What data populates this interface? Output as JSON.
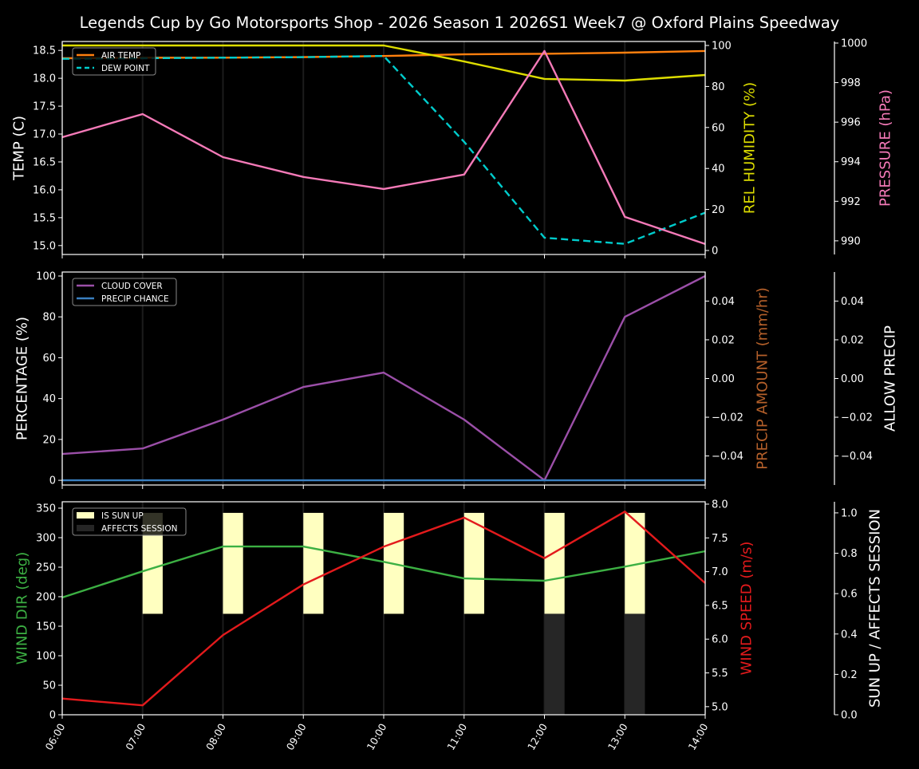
{
  "title": "Legends Cup by Go Motorsports Shop - 2026 Season 1 2026S1 Week7 @ Oxford Plains Speedway",
  "chart_data": [
    {
      "type": "line",
      "x": [
        "06:00",
        "07:00",
        "08:00",
        "09:00",
        "10:00",
        "11:00",
        "12:00",
        "13:00",
        "14:00"
      ],
      "left_axis": {
        "label": "TEMP (C)",
        "ylim": [
          14.84,
          18.66
        ],
        "ticks": [
          15.0,
          15.5,
          16.0,
          16.5,
          17.0,
          17.5,
          18.0,
          18.5
        ],
        "tick_labels": [
          "15.0",
          "15.5",
          "16.0",
          "16.5",
          "17.0",
          "17.5",
          "18.0",
          "18.5"
        ],
        "color": "#ffffff"
      },
      "right_axis": {
        "label": "REL HUMIDITY (%)",
        "ylim": [
          -1.95,
          101.95
        ],
        "ticks": [
          0,
          20,
          40,
          60,
          80,
          100
        ],
        "tick_labels": [
          "0",
          "20",
          "40",
          "60",
          "80",
          "100"
        ],
        "color": "#dddd00"
      },
      "far_right_axis": {
        "label": "PRESSURE (hPa)",
        "ylim": [
          989.31,
          1000.08
        ],
        "ticks": [
          990,
          992,
          994,
          996,
          998,
          1000
        ],
        "tick_labels": [
          "990",
          "992",
          "994",
          "996",
          "998",
          "1000"
        ],
        "color": "#f57ab8"
      },
      "series": [
        {
          "name": "AIR TEMP",
          "axis": "left",
          "color": "#ff7f0e",
          "dash": false,
          "legend": true,
          "values": [
            18.36,
            18.37,
            18.37,
            18.38,
            18.4,
            18.43,
            18.44,
            18.46,
            18.49
          ]
        },
        {
          "name": "DEW POINT",
          "axis": "left",
          "color": "#00cccc",
          "dash": true,
          "legend": true,
          "values": [
            18.35,
            18.36,
            18.37,
            18.38,
            18.4,
            16.86,
            15.14,
            15.03,
            15.59
          ]
        },
        {
          "axis": "right",
          "color": "#dddd00",
          "dash": false,
          "legend": false,
          "values": [
            100,
            100,
            100,
            100,
            100,
            92.2,
            83.7,
            82.9,
            85.6
          ]
        },
        {
          "axis": "far_right",
          "color": "#f57ab8",
          "dash": false,
          "legend": false,
          "values": [
            995.24,
            996.41,
            994.23,
            993.23,
            992.62,
            993.35,
            999.6,
            991.21,
            989.84
          ]
        }
      ],
      "legend": "top-left",
      "grid": "vertical"
    },
    {
      "type": "line",
      "x": [
        "06:00",
        "07:00",
        "08:00",
        "09:00",
        "10:00",
        "11:00",
        "12:00",
        "13:00",
        "14:00"
      ],
      "left_axis": {
        "label": "PERCENTAGE (%)",
        "ylim": [
          -2.3,
          101.95
        ],
        "ticks": [
          0,
          20,
          40,
          60,
          80,
          100
        ],
        "tick_labels": [
          "0",
          "20",
          "40",
          "60",
          "80",
          "100"
        ],
        "color": "#ffffff"
      },
      "right_axis": {
        "label": "PRECIP AMOUNT (mm/hr)",
        "ylim": [
          -0.055,
          0.055
        ],
        "ticks": [
          -0.04,
          -0.02,
          0,
          0.02,
          0.04
        ],
        "tick_labels": [
          "−0.04",
          "−0.02",
          "0.00",
          "0.02",
          "0.04"
        ],
        "color": "#b5602a"
      },
      "far_right_axis": {
        "label": "ALLOW PRECIP",
        "ylim": [
          -0.055,
          0.055
        ],
        "ticks": [
          -0.04,
          -0.02,
          0,
          0.02,
          0.04
        ],
        "tick_labels": [
          "−0.04",
          "−0.02",
          "0.00",
          "0.02",
          "0.04"
        ],
        "color": "#ffffff"
      },
      "series": [
        {
          "name": "CLOUD COVER",
          "axis": "left",
          "color": "#9b4fa8",
          "dash": false,
          "legend": true,
          "values": [
            12.9,
            15.6,
            29.7,
            45.7,
            52.7,
            29.7,
            0,
            80,
            100
          ]
        },
        {
          "name": "PRECIP CHANCE",
          "axis": "left",
          "color": "#3a7fc0",
          "dash": false,
          "legend": true,
          "values": [
            0,
            0,
            0,
            0,
            0,
            0,
            0,
            0,
            0
          ]
        }
      ],
      "legend": "top-left",
      "grid": "vertical"
    },
    {
      "type": "line",
      "x": [
        "06:00",
        "07:00",
        "08:00",
        "09:00",
        "10:00",
        "11:00",
        "12:00",
        "13:00",
        "14:00"
      ],
      "left_axis": {
        "label": "WIND DIR (deg)",
        "ylim": [
          0,
          360.8
        ],
        "ticks": [
          0,
          50,
          100,
          150,
          200,
          250,
          300,
          350
        ],
        "tick_labels": [
          "0",
          "50",
          "100",
          "150",
          "200",
          "250",
          "300",
          "350"
        ],
        "color": "#3cb043"
      },
      "right_axis": {
        "label": "WIND SPEED (m/s)",
        "ylim": [
          4.88,
          8.035
        ],
        "ticks": [
          5.0,
          5.5,
          6.0,
          6.5,
          7.0,
          7.5,
          8.0
        ],
        "tick_labels": [
          "5.0",
          "5.5",
          "6.0",
          "6.5",
          "7.0",
          "7.5",
          "8.0"
        ],
        "color": "#e31a1c"
      },
      "far_right_axis": {
        "label": "SUN UP / AFFECTS SESSION",
        "ylim": [
          0,
          1.055
        ],
        "ticks": [
          0,
          0.2,
          0.4,
          0.6,
          0.8,
          1.0
        ],
        "tick_labels": [
          "0.0",
          "0.2",
          "0.4",
          "0.6",
          "0.8",
          "1.0"
        ],
        "color": "#ffffff"
      },
      "series": [
        {
          "name": "WIND DIR",
          "axis": "left",
          "color": "#3cb043",
          "dash": false,
          "legend": false,
          "values": [
            198.6,
            243,
            285,
            285,
            259,
            231,
            227,
            251,
            277
          ]
        },
        {
          "name": "WIND SPEED",
          "axis": "right",
          "color": "#e31a1c",
          "dash": false,
          "legend": false,
          "values": [
            5.12,
            5.02,
            6.06,
            6.81,
            7.37,
            7.8,
            7.2,
            7.89,
            6.83
          ]
        }
      ],
      "bars": [
        {
          "name": "IS SUN UP",
          "color": "#ffffc0",
          "base": 0.5,
          "height": 0.5,
          "values": [
            0,
            1,
            1,
            1,
            1,
            1,
            1,
            1,
            0
          ]
        },
        {
          "name": "AFFECTS SESSION",
          "color": "#262626",
          "base": 0,
          "height": 0.5,
          "values": [
            0,
            0,
            0,
            0,
            0,
            0,
            1,
            1,
            0
          ]
        }
      ],
      "legend": "top-left",
      "grid": "vertical"
    }
  ]
}
